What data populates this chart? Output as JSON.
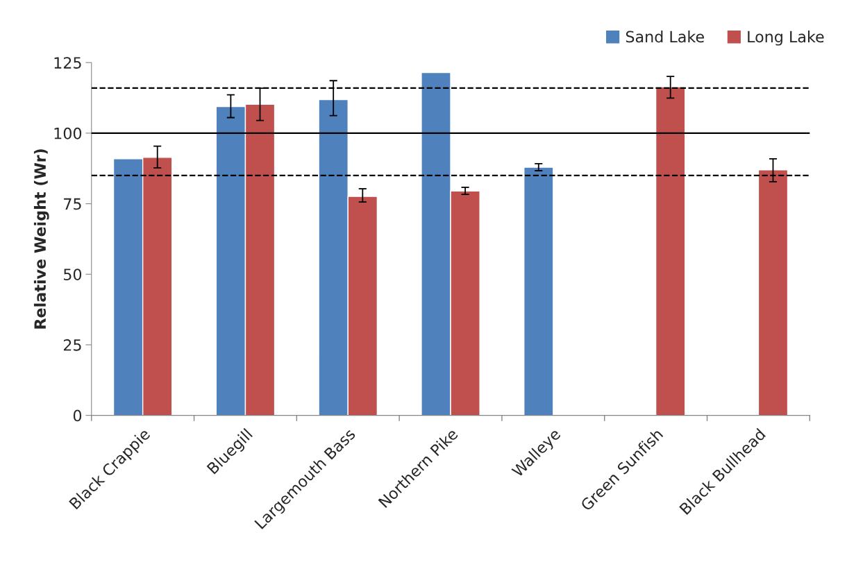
{
  "chart_data": {
    "type": "bar",
    "ylabel": "Relative Weight (Wr)",
    "categories": [
      "Black Crappie",
      "Bluegill",
      "Largemouth Bass",
      "Northern Pike",
      "Walleye",
      "Green Sunfish",
      "Black Bullhead"
    ],
    "series": [
      {
        "name": "Sand Lake",
        "color": "#4f81bd",
        "values": [
          90.9,
          109.4,
          111.9,
          121.5,
          87.9,
          null,
          null
        ],
        "errors": [
          null,
          [
            105.5,
            113.6
          ],
          [
            106.2,
            118.6
          ],
          null,
          [
            86.7,
            89.2
          ],
          null,
          null
        ]
      },
      {
        "name": "Long Lake",
        "color": "#c0504d",
        "values": [
          91.4,
          110.2,
          77.6,
          79.5,
          null,
          116.4,
          87.0
        ],
        "errors": [
          [
            87.7,
            95.4
          ],
          [
            104.5,
            115.9
          ],
          [
            75.6,
            80.3
          ],
          [
            78.3,
            80.8
          ],
          null,
          [
            112.4,
            120.1
          ],
          [
            82.8,
            90.9
          ]
        ]
      }
    ],
    "ylim": [
      0,
      125
    ],
    "yticks": [
      0,
      25,
      50,
      75,
      100,
      125
    ],
    "ref_lines": [
      {
        "axis": "y",
        "value": 100,
        "line_style": "solid",
        "color": "#000000"
      },
      {
        "axis": "y",
        "value": 116,
        "line_style": "dashed",
        "color": "#000000"
      },
      {
        "axis": "y",
        "value": 85,
        "line_style": "dashed",
        "color": "#000000"
      }
    ],
    "grid": false,
    "legend": "top right"
  }
}
